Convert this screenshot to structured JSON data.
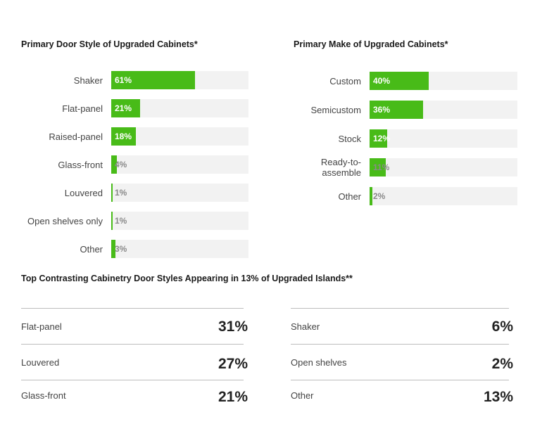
{
  "chart_data": [
    {
      "type": "bar",
      "title": "Primary Door Style of Upgraded Cabinets*",
      "categories": [
        "Shaker",
        "Flat-panel",
        "Raised-panel",
        "Glass-front",
        "Louvered",
        "Open shelves only",
        "Other"
      ],
      "values": [
        61,
        21,
        18,
        4,
        1,
        1,
        3
      ],
      "value_labels": [
        "61%",
        "21%",
        "18%",
        "4%",
        "1%",
        "1%",
        "3%"
      ],
      "xlim": [
        0,
        100
      ],
      "orientation": "horizontal",
      "bar_color": "#48bb18",
      "track_color": "#f2f2f2"
    },
    {
      "type": "bar",
      "title": "Primary Make of Upgraded Cabinets*",
      "categories": [
        "Custom",
        "Semicustom",
        "Stock",
        "Ready-to-assemble",
        "Other"
      ],
      "display_categories": [
        "Custom",
        "Semicustom",
        "Stock",
        "Ready-to-\nassemble",
        "Other"
      ],
      "values": [
        40,
        36,
        12,
        11,
        2
      ],
      "value_labels": [
        "40%",
        "36%",
        "12%",
        "11%",
        "2%"
      ],
      "xlim": [
        0,
        100
      ],
      "orientation": "horizontal",
      "bar_color": "#48bb18",
      "track_color": "#f2f2f2"
    },
    {
      "type": "table",
      "title": "Top Contrasting Cabinetry Door Styles Appearing in 13% of Upgraded Islands**",
      "columns": [
        {
          "rows": [
            {
              "label": "Flat-panel",
              "value": "31%"
            },
            {
              "label": "Louvered",
              "value": "27%"
            },
            {
              "label": "Glass-front",
              "value": "21%"
            }
          ]
        },
        {
          "rows": [
            {
              "label": "Shaker",
              "value": "6%"
            },
            {
              "label": "Open shelves",
              "value": "2%"
            },
            {
              "label": "Other",
              "value": "13%"
            }
          ]
        }
      ]
    }
  ]
}
